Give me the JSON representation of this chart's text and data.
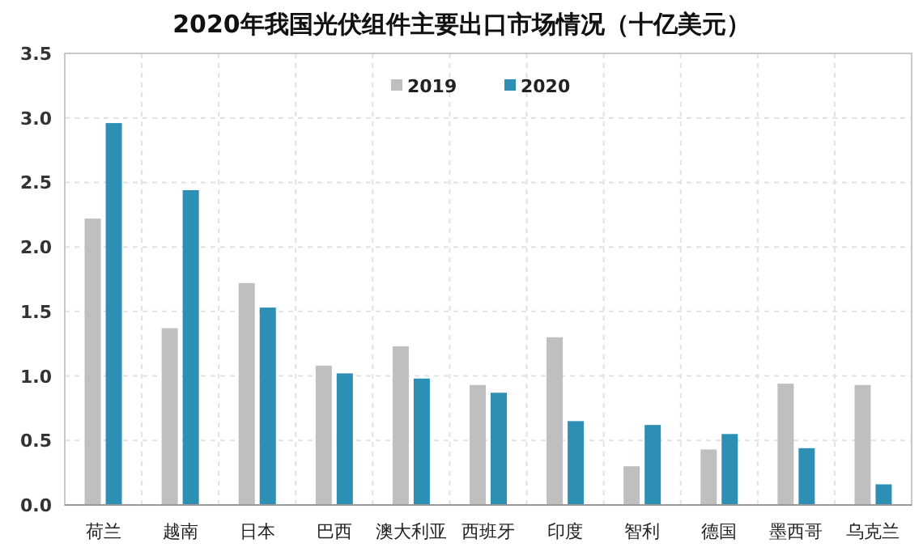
{
  "chart_data": {
    "type": "bar",
    "title": "2020年我国光伏组件主要出口市场情况（十亿美元）",
    "categories": [
      "荷兰",
      "越南",
      "日本",
      "巴西",
      "澳大利亚",
      "西班牙",
      "印度",
      "智利",
      "德国",
      "墨西哥",
      "乌克兰"
    ],
    "series": [
      {
        "name": "2019",
        "color": "#bfbfbf",
        "values": [
          2.22,
          1.37,
          1.72,
          1.08,
          1.23,
          0.93,
          1.3,
          0.3,
          0.43,
          0.94,
          0.93
        ]
      },
      {
        "name": "2020",
        "color": "#2e8fb4",
        "values": [
          2.96,
          2.44,
          1.53,
          1.02,
          0.98,
          0.87,
          0.65,
          0.62,
          0.55,
          0.44,
          0.16
        ]
      }
    ],
    "ylim": [
      0,
      3.5
    ],
    "yticks": [
      {
        "value": 0,
        "label": "0.0"
      },
      {
        "value": 0.5,
        "label": "0.5"
      },
      {
        "value": 1,
        "label": "1.0"
      },
      {
        "value": 1.5,
        "label": "1.5"
      },
      {
        "value": 2,
        "label": "2.0"
      },
      {
        "value": 2.5,
        "label": "2.5"
      },
      {
        "value": 3,
        "label": "3.0"
      },
      {
        "value": 3.5,
        "label": "3.5"
      }
    ],
    "grid": true,
    "legend": "top"
  }
}
